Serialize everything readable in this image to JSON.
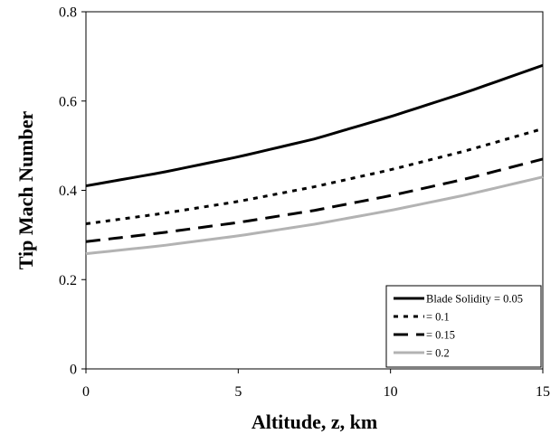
{
  "chart_data": {
    "type": "line",
    "title": "",
    "xlabel": "Altitude, z, km",
    "ylabel": "Tip Mach Number",
    "xlim": [
      0,
      15
    ],
    "ylim": [
      0,
      0.8
    ],
    "xticks": [
      0,
      5,
      10,
      15
    ],
    "yticks": [
      0,
      0.2,
      0.4,
      0.6,
      0.8
    ],
    "xtick_labels": [
      "0",
      "5",
      "10",
      "15"
    ],
    "ytick_labels": [
      "0",
      "0.2",
      "0.4",
      "0.6",
      "0.8"
    ],
    "grid": false,
    "legend_position": "bottom-right",
    "x": [
      0,
      2.5,
      5,
      7.5,
      10,
      12.5,
      15
    ],
    "series": [
      {
        "name": "Blade Solidity = 0.05",
        "style": "solid",
        "color": "#000000",
        "values": [
          0.41,
          0.44,
          0.475,
          0.515,
          0.565,
          0.62,
          0.68
        ]
      },
      {
        "name": "= 0.1",
        "style": "dotted",
        "color": "#000000",
        "values": [
          0.325,
          0.348,
          0.375,
          0.408,
          0.446,
          0.489,
          0.538
        ]
      },
      {
        "name": "= 0.15",
        "style": "dashed",
        "color": "#000000",
        "values": [
          0.285,
          0.305,
          0.328,
          0.355,
          0.388,
          0.426,
          0.47
        ]
      },
      {
        "name": "= 0.2",
        "style": "solid",
        "color": "#b3b3b3",
        "values": [
          0.258,
          0.276,
          0.298,
          0.324,
          0.355,
          0.39,
          0.43
        ]
      }
    ]
  }
}
